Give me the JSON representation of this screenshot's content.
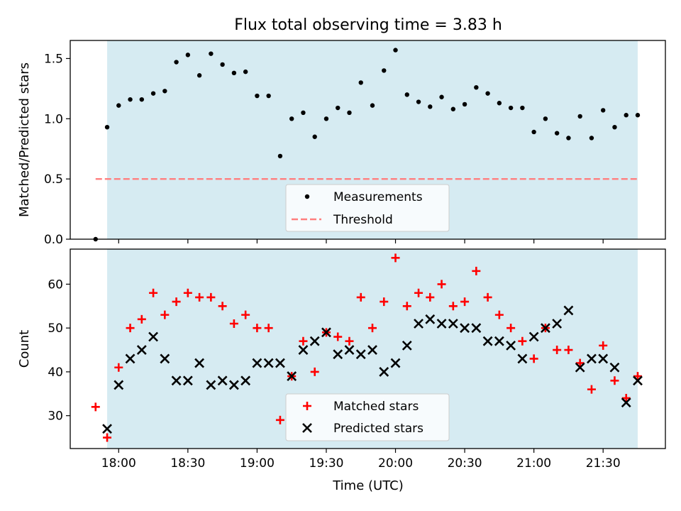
{
  "figure": {
    "title": "Flux total observing time = 3.83 h",
    "xlabel": "Time (UTC)",
    "x_tick_labels": [
      "18:00",
      "18:30",
      "19:00",
      "19:30",
      "20:00",
      "20:30",
      "21:00",
      "21:30"
    ],
    "band_color": "#add8e6",
    "band_alpha": 0.5
  },
  "chart_data": [
    {
      "type": "scatter",
      "ylabel": "Matched/Predicted stars",
      "ylim": [
        0,
        1.65
      ],
      "y_ticks": [
        0.0,
        0.5,
        1.0,
        1.5
      ],
      "x_unit": "minutes since 17:00 UTC",
      "shaded_band": [
        55,
        285
      ],
      "legend": {
        "position": "lower-center",
        "entries": [
          "Measurements",
          "Threshold"
        ]
      },
      "series": [
        {
          "name": "Measurements",
          "marker": "dot",
          "color": "#000000",
          "points": [
            [
              50,
              0.0
            ],
            [
              55,
              0.93
            ],
            [
              60,
              1.11
            ],
            [
              65,
              1.16
            ],
            [
              70,
              1.16
            ],
            [
              75,
              1.21
            ],
            [
              80,
              1.23
            ],
            [
              85,
              1.47
            ],
            [
              90,
              1.53
            ],
            [
              95,
              1.36
            ],
            [
              100,
              1.54
            ],
            [
              105,
              1.45
            ],
            [
              110,
              1.38
            ],
            [
              115,
              1.39
            ],
            [
              120,
              1.19
            ],
            [
              125,
              1.19
            ],
            [
              130,
              0.69
            ],
            [
              135,
              1.0
            ],
            [
              140,
              1.05
            ],
            [
              145,
              0.85
            ],
            [
              150,
              1.0
            ],
            [
              155,
              1.09
            ],
            [
              160,
              1.05
            ],
            [
              165,
              1.3
            ],
            [
              170,
              1.11
            ],
            [
              175,
              1.4
            ],
            [
              180,
              1.57
            ],
            [
              185,
              1.2
            ],
            [
              190,
              1.14
            ],
            [
              195,
              1.1
            ],
            [
              200,
              1.18
            ],
            [
              205,
              1.08
            ],
            [
              210,
              1.12
            ],
            [
              215,
              1.26
            ],
            [
              220,
              1.21
            ],
            [
              225,
              1.13
            ],
            [
              230,
              1.09
            ],
            [
              235,
              1.09
            ],
            [
              240,
              0.89
            ],
            [
              245,
              1.0
            ],
            [
              250,
              0.88
            ],
            [
              255,
              0.84
            ],
            [
              260,
              1.02
            ],
            [
              265,
              0.84
            ],
            [
              270,
              1.07
            ],
            [
              275,
              0.93
            ],
            [
              280,
              1.03
            ],
            [
              285,
              1.03
            ]
          ]
        },
        {
          "name": "Threshold",
          "marker": "dashed-line",
          "color": "#ff7f7f",
          "points": [
            [
              50,
              0.5
            ],
            [
              285,
              0.5
            ]
          ]
        }
      ]
    },
    {
      "type": "scatter",
      "ylabel": "Count",
      "ylim": [
        22.5,
        68
      ],
      "y_ticks": [
        30,
        40,
        50,
        60
      ],
      "x_unit": "minutes since 17:00 UTC",
      "shaded_band": [
        55,
        285
      ],
      "legend": {
        "position": "lower-center",
        "entries": [
          "Matched stars",
          "Predicted stars"
        ]
      },
      "series": [
        {
          "name": "Matched stars",
          "marker": "plus",
          "color": "#ff0000",
          "points": [
            [
              50,
              32
            ],
            [
              55,
              25
            ],
            [
              60,
              41
            ],
            [
              65,
              50
            ],
            [
              70,
              52
            ],
            [
              75,
              58
            ],
            [
              80,
              53
            ],
            [
              85,
              56
            ],
            [
              90,
              58
            ],
            [
              95,
              57
            ],
            [
              100,
              57
            ],
            [
              105,
              55
            ],
            [
              110,
              51
            ],
            [
              115,
              53
            ],
            [
              120,
              50
            ],
            [
              125,
              50
            ],
            [
              130,
              29
            ],
            [
              135,
              39
            ],
            [
              140,
              47
            ],
            [
              145,
              40
            ],
            [
              150,
              49
            ],
            [
              155,
              48
            ],
            [
              160,
              47
            ],
            [
              165,
              57
            ],
            [
              170,
              50
            ],
            [
              175,
              56
            ],
            [
              180,
              66
            ],
            [
              185,
              55
            ],
            [
              190,
              58
            ],
            [
              195,
              57
            ],
            [
              200,
              60
            ],
            [
              205,
              55
            ],
            [
              210,
              56
            ],
            [
              215,
              63
            ],
            [
              220,
              57
            ],
            [
              225,
              53
            ],
            [
              230,
              50
            ],
            [
              235,
              47
            ],
            [
              240,
              43
            ],
            [
              245,
              50
            ],
            [
              250,
              45
            ],
            [
              255,
              45
            ],
            [
              260,
              42
            ],
            [
              265,
              36
            ],
            [
              270,
              46
            ],
            [
              275,
              38
            ],
            [
              280,
              34
            ],
            [
              285,
              39
            ]
          ]
        },
        {
          "name": "Predicted stars",
          "marker": "x",
          "color": "#000000",
          "points": [
            [
              55,
              27
            ],
            [
              60,
              37
            ],
            [
              65,
              43
            ],
            [
              70,
              45
            ],
            [
              75,
              48
            ],
            [
              80,
              43
            ],
            [
              85,
              38
            ],
            [
              90,
              38
            ],
            [
              95,
              42
            ],
            [
              100,
              37
            ],
            [
              105,
              38
            ],
            [
              110,
              37
            ],
            [
              115,
              38
            ],
            [
              120,
              42
            ],
            [
              125,
              42
            ],
            [
              130,
              42
            ],
            [
              135,
              39
            ],
            [
              140,
              45
            ],
            [
              145,
              47
            ],
            [
              150,
              49
            ],
            [
              155,
              44
            ],
            [
              160,
              45
            ],
            [
              165,
              44
            ],
            [
              170,
              45
            ],
            [
              175,
              40
            ],
            [
              180,
              42
            ],
            [
              185,
              46
            ],
            [
              190,
              51
            ],
            [
              195,
              52
            ],
            [
              200,
              51
            ],
            [
              205,
              51
            ],
            [
              210,
              50
            ],
            [
              215,
              50
            ],
            [
              220,
              47
            ],
            [
              225,
              47
            ],
            [
              230,
              46
            ],
            [
              235,
              43
            ],
            [
              240,
              48
            ],
            [
              245,
              50
            ],
            [
              250,
              51
            ],
            [
              255,
              54
            ],
            [
              260,
              41
            ],
            [
              265,
              43
            ],
            [
              270,
              43
            ],
            [
              275,
              41
            ],
            [
              280,
              33
            ],
            [
              285,
              38
            ]
          ]
        }
      ]
    }
  ]
}
